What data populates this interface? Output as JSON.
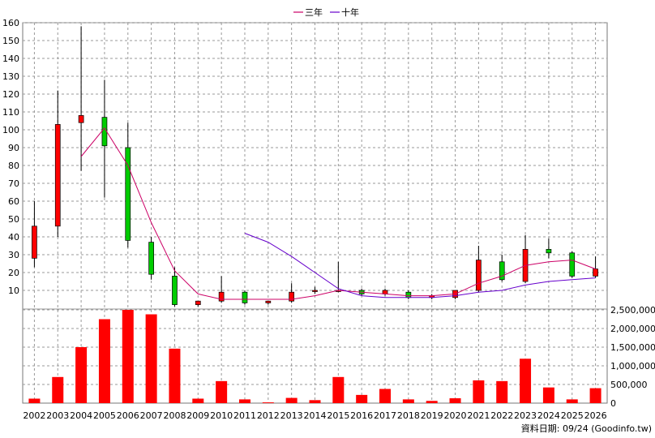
{
  "legend": [
    {
      "label": "三年",
      "color": "#cc0066"
    },
    {
      "label": "十年",
      "color": "#6600cc"
    }
  ],
  "footer": "資料日期: 09/24  (Goodinfo.tw)",
  "colors": {
    "up": "#ff0000",
    "down": "#00cc00",
    "grid": "#999999",
    "volume": "#ff0000"
  },
  "chart_data": {
    "type": "candlestick+bar",
    "years": [
      "2002",
      "2003",
      "2004",
      "2005",
      "2006",
      "2007",
      "2008",
      "2009",
      "2010",
      "2011",
      "2012",
      "2013",
      "2014",
      "2015",
      "2016",
      "2017",
      "2018",
      "2019",
      "2020",
      "2021",
      "2022",
      "2023",
      "2024",
      "2025",
      "2026"
    ],
    "price_axis": {
      "ylim": [
        0,
        160
      ],
      "ticks": [
        10,
        20,
        30,
        40,
        50,
        60,
        70,
        80,
        90,
        100,
        110,
        120,
        130,
        140,
        150,
        160
      ]
    },
    "volume_axis": {
      "ylim": [
        0,
        2500000
      ],
      "ticks": [
        "0",
        "500,000",
        "1,000,000",
        "1,500,000",
        "2,000,000",
        "2,500,000"
      ]
    },
    "candles": [
      {
        "o": 28,
        "c": 46,
        "h": 60,
        "l": 23
      },
      {
        "o": 46,
        "c": 103,
        "h": 122,
        "l": 40
      },
      {
        "o": 104,
        "c": 108,
        "h": 158,
        "l": 77
      },
      {
        "o": 107,
        "c": 91,
        "h": 128,
        "l": 62
      },
      {
        "o": 90,
        "c": 38,
        "h": 104,
        "l": 34
      },
      {
        "o": 37,
        "c": 19,
        "h": 40,
        "l": 16
      },
      {
        "o": 18,
        "c": 2,
        "h": 23,
        "l": 1
      },
      {
        "o": 2,
        "c": 4,
        "h": 4,
        "l": 1
      },
      {
        "o": 4,
        "c": 9,
        "h": 18,
        "l": 3
      },
      {
        "o": 9,
        "c": 3,
        "h": 10,
        "l": 2
      },
      {
        "o": 3,
        "c": 4,
        "h": 4,
        "l": 2
      },
      {
        "o": 4,
        "c": 9,
        "h": 14,
        "l": 3
      },
      {
        "o": 10,
        "c": 10,
        "h": 12,
        "l": 8
      },
      {
        "o": 10,
        "c": 10,
        "h": 26,
        "l": 9
      },
      {
        "o": 10,
        "c": 8,
        "h": 11,
        "l": 7
      },
      {
        "o": 8,
        "c": 10,
        "h": 11,
        "l": 7
      },
      {
        "o": 9,
        "c": 6,
        "h": 10,
        "l": 5
      },
      {
        "o": 6,
        "c": 7,
        "h": 8,
        "l": 5
      },
      {
        "o": 6,
        "c": 10,
        "h": 10,
        "l": 5
      },
      {
        "o": 10,
        "c": 27,
        "h": 35,
        "l": 9
      },
      {
        "o": 26,
        "c": 16,
        "h": 30,
        "l": 15
      },
      {
        "o": 15,
        "c": 33,
        "h": 41,
        "l": 14
      },
      {
        "o": 33,
        "c": 31,
        "h": 39,
        "l": 28
      },
      {
        "o": 31,
        "c": 18,
        "h": 32,
        "l": 17
      },
      {
        "o": 18,
        "c": 22,
        "h": 29,
        "l": 17
      }
    ],
    "volume": [
      120000,
      700000,
      1500000,
      2250000,
      2500000,
      2380000,
      1460000,
      120000,
      590000,
      100000,
      20000,
      140000,
      80000,
      700000,
      220000,
      380000,
      100000,
      60000,
      130000,
      610000,
      590000,
      1190000,
      420000,
      100000,
      400000
    ],
    "series": [
      {
        "name": "三年",
        "values": [
          null,
          null,
          85,
          101,
          80,
          48,
          21,
          8,
          5,
          5,
          5,
          5,
          7,
          10,
          9,
          8,
          7,
          7,
          8,
          14,
          18,
          24,
          26,
          27,
          22
        ]
      },
      {
        "name": "十年",
        "values": [
          null,
          null,
          null,
          null,
          null,
          null,
          null,
          null,
          null,
          42,
          37,
          29,
          20,
          11,
          7,
          6,
          6,
          6,
          7,
          9,
          10,
          13,
          15,
          16,
          17
        ]
      }
    ]
  }
}
